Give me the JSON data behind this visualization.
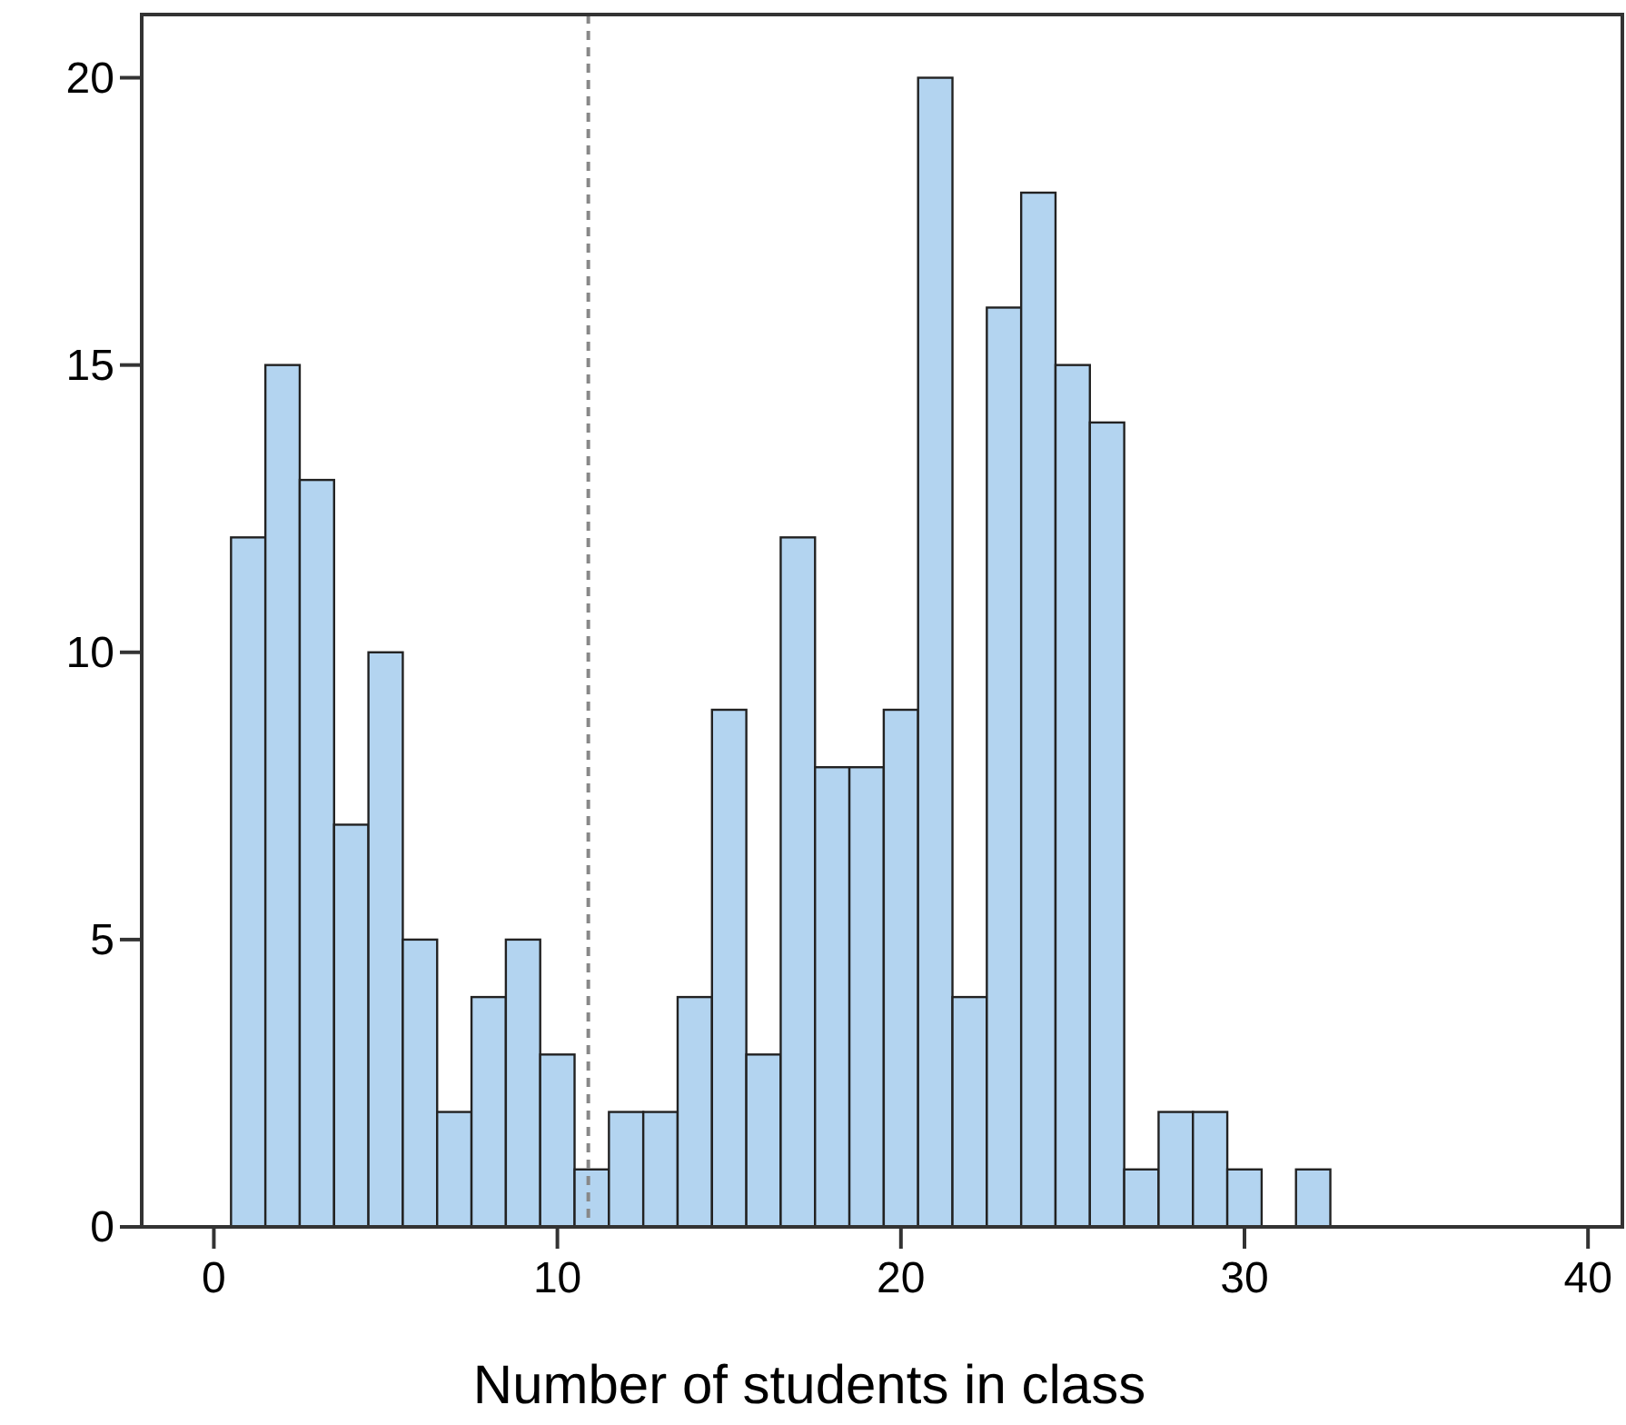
{
  "chart_data": {
    "type": "histogram",
    "xlabel": "Number of students in class",
    "bins": [
      0.5,
      1.5,
      2.5,
      3.5,
      4.5,
      5.5,
      6.5,
      7.5,
      8.5,
      9.5,
      10.5,
      11.5,
      12.5,
      13.5,
      14.5,
      15.5,
      16.5,
      17.5,
      18.5,
      19.5,
      20.5,
      21.5,
      22.5,
      23.5,
      24.5,
      25.5,
      26.5,
      27.5,
      28.5,
      29.5,
      30.5,
      31.5,
      32.5
    ],
    "values": [
      12,
      15,
      13,
      7,
      10,
      5,
      2,
      4,
      5,
      3,
      1,
      2,
      2,
      4,
      9,
      3,
      12,
      8,
      8,
      9,
      20,
      4,
      16,
      18,
      15,
      14,
      1,
      2,
      2,
      1,
      0,
      1
    ],
    "color": "#b3d4f0",
    "xlim": [
      -2.1,
      41
    ],
    "xticks": [
      0,
      10,
      20,
      30,
      40
    ],
    "ylim": [
      0,
      21.1
    ],
    "yticks": [
      0,
      5,
      10,
      15,
      20
    ],
    "ref_lines": [
      {
        "axis": "x",
        "value": 10.9,
        "color": "#888888",
        "line_style": "dashed"
      }
    ],
    "grid": false
  }
}
